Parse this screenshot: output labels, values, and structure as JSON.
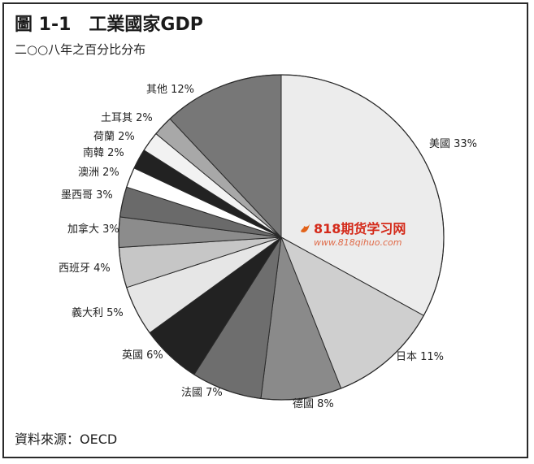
{
  "figure": {
    "title": "圖 1-1　工業國家GDP",
    "subtitle": "二○○八年之百分比分布",
    "source": "資料來源：OECD"
  },
  "watermark": {
    "text": "818期货学习网",
    "url": "www.818qihuo.com"
  },
  "chart_data": {
    "type": "pie",
    "title": "圖 1-1　工業國家GDP",
    "subtitle": "二○○八年之百分比分布",
    "unit": "%",
    "start_angle_deg": 0,
    "direction": "clockwise",
    "slices": [
      {
        "label": "美國 33%",
        "name": "美國",
        "value": 33,
        "color": "#ececec"
      },
      {
        "label": "日本 11%",
        "name": "日本",
        "value": 11,
        "color": "#cfcfcf"
      },
      {
        "label": "德國 8%",
        "name": "德國",
        "value": 8,
        "color": "#8a8a8a"
      },
      {
        "label": "法國 7%",
        "name": "法國",
        "value": 7,
        "color": "#6e6e6e"
      },
      {
        "label": "英國 6%",
        "name": "英國",
        "value": 6,
        "color": "#222222"
      },
      {
        "label": "義大利 5%",
        "name": "義大利",
        "value": 5,
        "color": "#e6e6e6"
      },
      {
        "label": "西班牙 4%",
        "name": "西班牙",
        "value": 4,
        "color": "#c6c6c6"
      },
      {
        "label": "加拿大 3%",
        "name": "加拿大",
        "value": 3,
        "color": "#8c8c8c"
      },
      {
        "label": "墨西哥 3%",
        "name": "墨西哥",
        "value": 3,
        "color": "#6a6a6a"
      },
      {
        "label": "澳洲 2%",
        "name": "澳洲",
        "value": 2,
        "color": "#ffffff"
      },
      {
        "label": "南韓 2%",
        "name": "南韓",
        "value": 2,
        "color": "#222222"
      },
      {
        "label": "荷蘭 2%",
        "name": "荷蘭",
        "value": 2,
        "color": "#f2f2f2"
      },
      {
        "label": "土耳其 2%",
        "name": "土耳其",
        "value": 2,
        "color": "#a8a8a8"
      },
      {
        "label": "其他 12%",
        "name": "其他",
        "value": 12,
        "color": "#777777"
      }
    ]
  }
}
